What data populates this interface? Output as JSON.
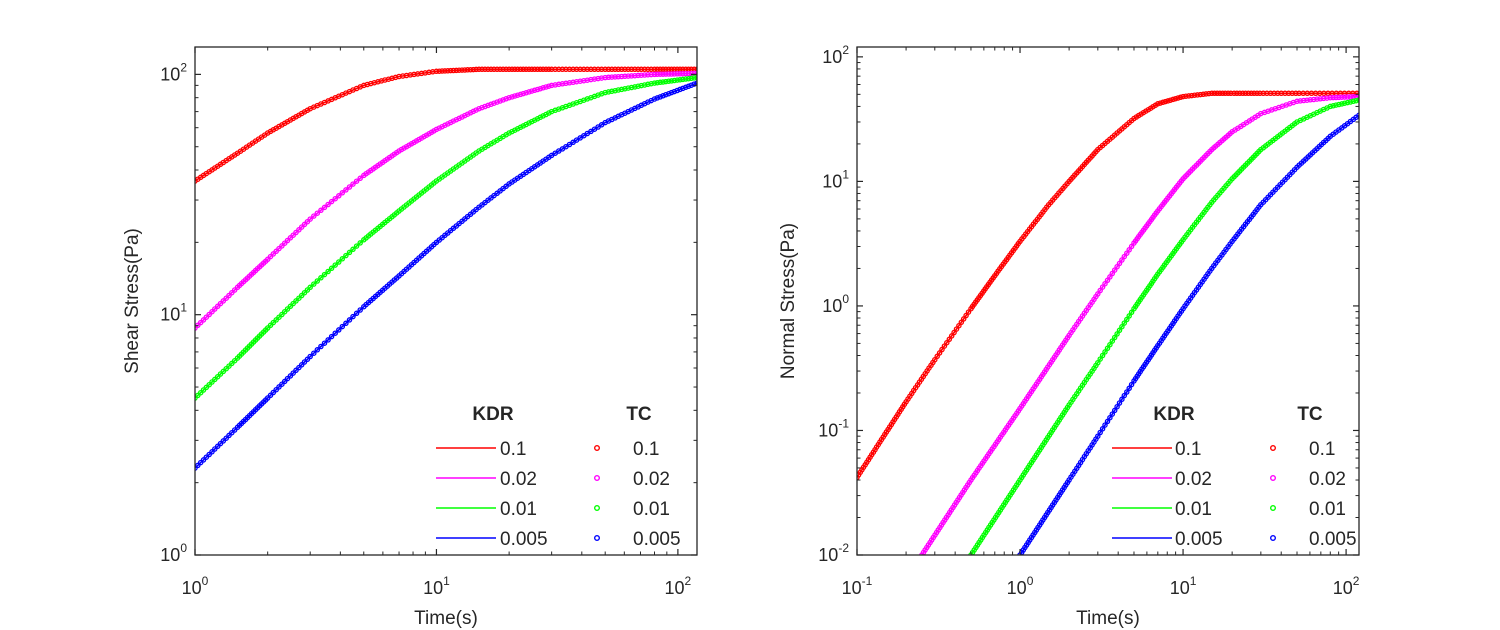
{
  "chart_data": [
    {
      "type": "line",
      "xlabel": "Time(s)",
      "ylabel": "Shear Stress(Pa)",
      "xscale": "log",
      "yscale": "log",
      "xlim": [
        1,
        120
      ],
      "ylim": [
        1,
        130
      ],
      "x_ticks": [
        {
          "base": "10",
          "exp": "0",
          "value": 1
        },
        {
          "base": "10",
          "exp": "1",
          "value": 10
        },
        {
          "base": "10",
          "exp": "2",
          "value": 100
        }
      ],
      "y_ticks": [
        {
          "base": "10",
          "exp": "0",
          "value": 1
        },
        {
          "base": "10",
          "exp": "1",
          "value": 10
        },
        {
          "base": "10",
          "exp": "2",
          "value": 100
        }
      ],
      "legend": {
        "position": "bottom-right",
        "headers": [
          "KDR",
          "TC"
        ]
      },
      "series": [
        {
          "name": "0.1",
          "color": "#ff0000",
          "x": [
            1,
            1.5,
            2,
            3,
            5,
            7,
            10,
            15,
            20,
            30,
            50,
            80,
            120
          ],
          "y": [
            36,
            47,
            57,
            72,
            90,
            98,
            103,
            105,
            105,
            105,
            105,
            105,
            105
          ]
        },
        {
          "name": "0.02",
          "color": "#ff00ff",
          "x": [
            1,
            1.5,
            2,
            3,
            5,
            7,
            10,
            15,
            20,
            30,
            50,
            80,
            120
          ],
          "y": [
            8.8,
            13,
            17,
            25,
            38,
            48,
            59,
            72,
            80,
            90,
            97,
            100,
            101
          ]
        },
        {
          "name": "0.01",
          "color": "#00ff00",
          "x": [
            1,
            1.5,
            2,
            3,
            5,
            7,
            10,
            15,
            20,
            30,
            50,
            80,
            120
          ],
          "y": [
            4.5,
            6.6,
            8.8,
            13,
            20.5,
            27,
            36,
            48,
            57,
            70,
            84,
            92,
            97
          ]
        },
        {
          "name": "0.005",
          "color": "#0000ff",
          "x": [
            1,
            1.5,
            2,
            3,
            5,
            7,
            10,
            15,
            20,
            30,
            50,
            80,
            120
          ],
          "y": [
            2.3,
            3.4,
            4.5,
            6.7,
            10.8,
            14.5,
            20,
            28,
            35,
            46,
            63,
            79,
            92
          ]
        }
      ]
    },
    {
      "type": "line",
      "xlabel": "Time(s)",
      "ylabel": "Normal Stress(Pa)",
      "xscale": "log",
      "yscale": "log",
      "xlim": [
        0.1,
        120
      ],
      "ylim": [
        0.01,
        120
      ],
      "x_ticks": [
        {
          "base": "10",
          "exp": "-1",
          "value": 0.1
        },
        {
          "base": "10",
          "exp": "0",
          "value": 1
        },
        {
          "base": "10",
          "exp": "1",
          "value": 10
        },
        {
          "base": "10",
          "exp": "2",
          "value": 100
        }
      ],
      "y_ticks": [
        {
          "base": "10",
          "exp": "-2",
          "value": 0.01
        },
        {
          "base": "10",
          "exp": "-1",
          "value": 0.1
        },
        {
          "base": "10",
          "exp": "0",
          "value": 1
        },
        {
          "base": "10",
          "exp": "1",
          "value": 10
        },
        {
          "base": "10",
          "exp": "2",
          "value": 100
        }
      ],
      "legend": {
        "position": "bottom-right",
        "headers": [
          "KDR",
          "TC"
        ]
      },
      "series": [
        {
          "name": "0.1",
          "color": "#ff0000",
          "x": [
            0.1,
            0.2,
            0.3,
            0.5,
            0.7,
            1,
            1.5,
            2,
            3,
            5,
            7,
            10,
            15,
            20,
            30,
            50,
            120
          ],
          "y": [
            0.042,
            0.17,
            0.37,
            0.95,
            1.75,
            3.3,
            6.5,
            10,
            18,
            32,
            42,
            48,
            51,
            51,
            51,
            51,
            51
          ]
        },
        {
          "name": "0.02",
          "color": "#ff00ff",
          "x": [
            0.25,
            0.5,
            1,
            2,
            3,
            5,
            7,
            10,
            15,
            20,
            30,
            50,
            80,
            120
          ],
          "y": [
            0.01,
            0.04,
            0.15,
            0.58,
            1.25,
            3.2,
            5.8,
            10.5,
            18,
            25,
            35,
            44,
            47,
            48
          ]
        },
        {
          "name": "0.01",
          "color": "#00ff00",
          "x": [
            0.5,
            1,
            2,
            3,
            5,
            7,
            10,
            15,
            20,
            30,
            50,
            80,
            120
          ],
          "y": [
            0.01,
            0.04,
            0.16,
            0.35,
            0.95,
            1.8,
            3.4,
            6.8,
            10.5,
            18,
            30,
            40,
            45
          ]
        },
        {
          "name": "0.005",
          "color": "#0000ff",
          "x": [
            1,
            2,
            3,
            5,
            7,
            10,
            15,
            20,
            30,
            50,
            80,
            120
          ],
          "y": [
            0.01,
            0.04,
            0.09,
            0.25,
            0.48,
            0.95,
            2,
            3.3,
            6.5,
            13,
            23,
            34
          ]
        }
      ]
    }
  ]
}
